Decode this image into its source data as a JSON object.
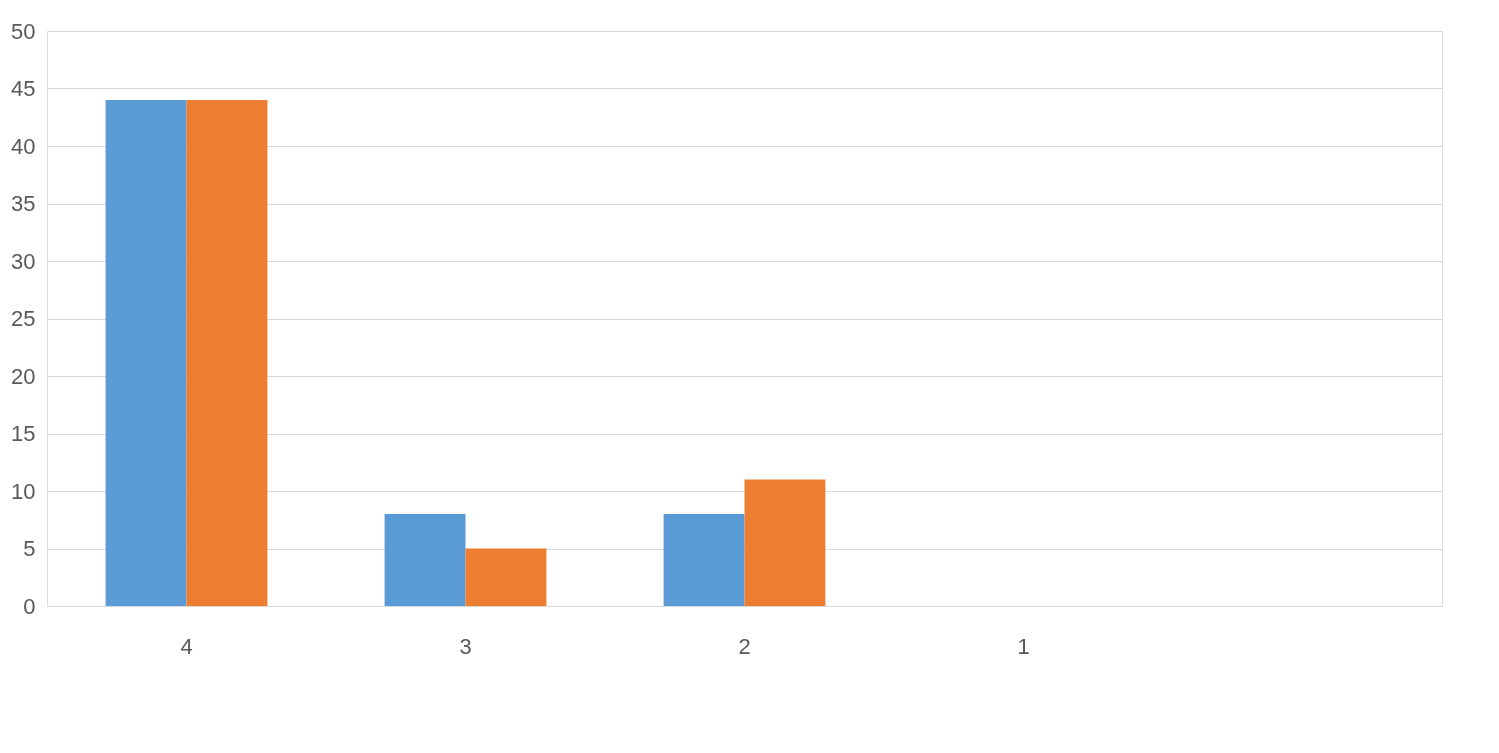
{
  "chart_data": {
    "type": "bar",
    "categories": [
      "4",
      "3",
      "2",
      "1",
      null
    ],
    "series": [
      {
        "color": "#5b9bd5",
        "values": [
          44,
          8,
          8,
          0,
          null
        ]
      },
      {
        "color": "#ed7d31",
        "values": [
          44,
          5,
          11,
          0,
          null
        ]
      }
    ],
    "ylim": [
      0,
      50
    ],
    "yticks": [
      0,
      5,
      10,
      15,
      20,
      25,
      30,
      35,
      40,
      45,
      50
    ],
    "grid": "y",
    "legend": false
  }
}
